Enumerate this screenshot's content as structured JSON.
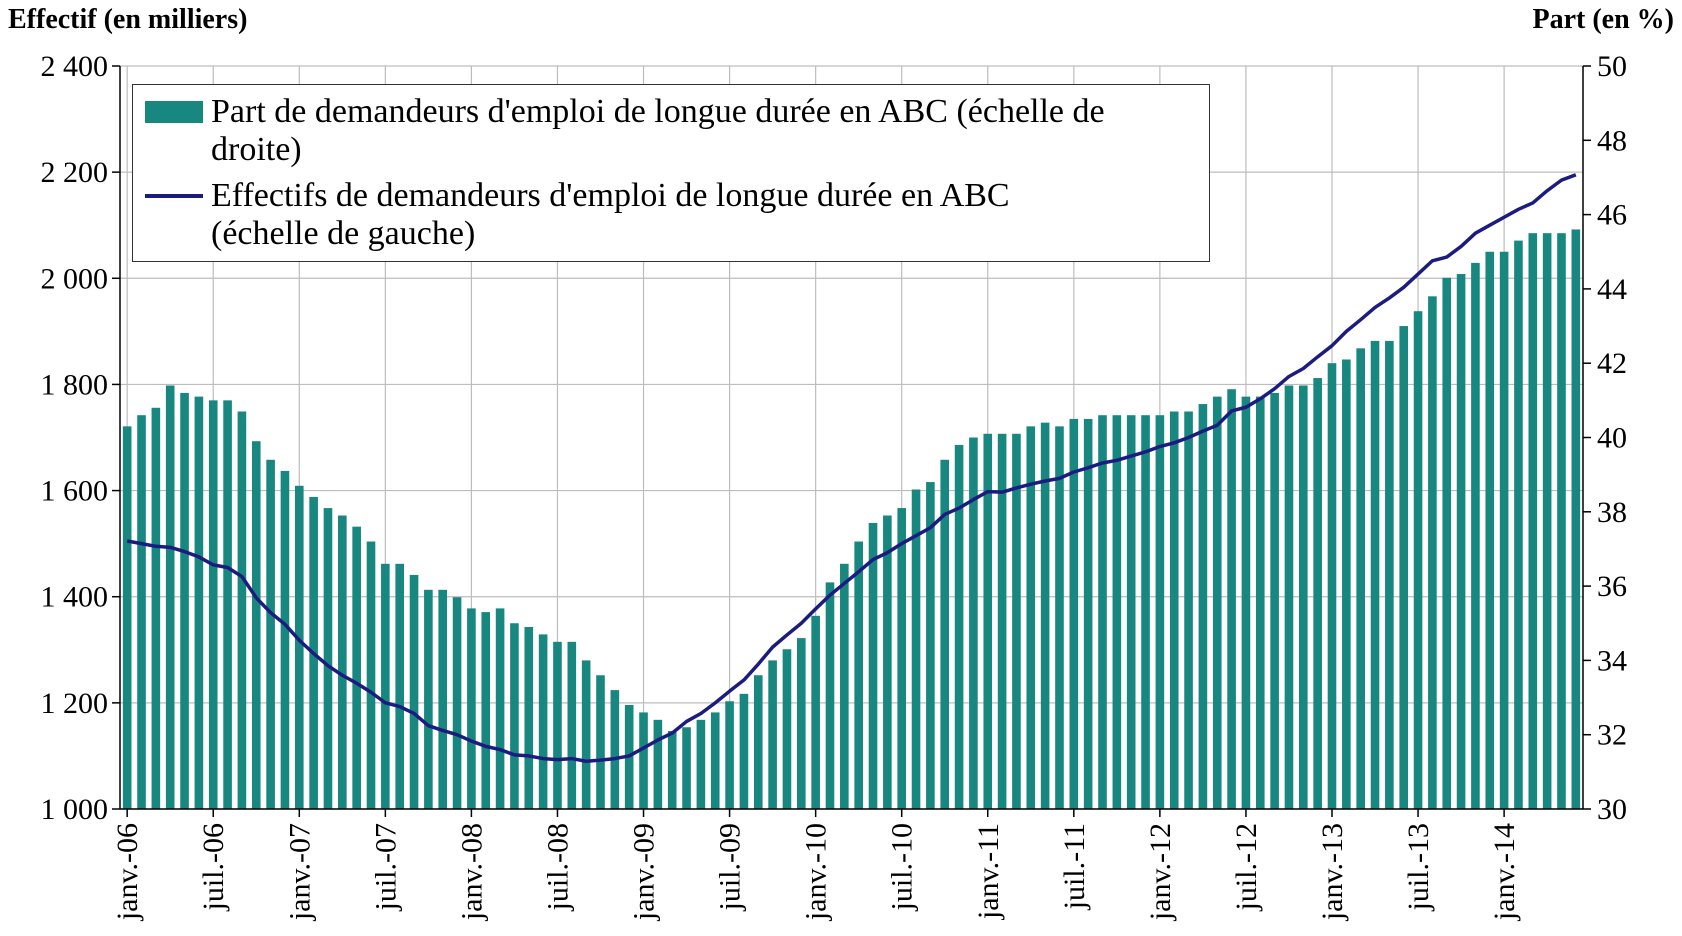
{
  "chart_data": {
    "type": "bar_line",
    "y_label": "Effectif (en milliers)",
    "y2_label": "Part (en %)",
    "categories": [
      "janv.-06",
      null,
      null,
      null,
      null,
      null,
      "juil.-06",
      null,
      null,
      null,
      null,
      null,
      "janv.-07",
      null,
      null,
      null,
      null,
      null,
      "juil.-07",
      null,
      null,
      null,
      null,
      null,
      "janv.-08",
      null,
      null,
      null,
      null,
      null,
      "juil.-08",
      null,
      null,
      null,
      null,
      null,
      "janv.-09",
      null,
      null,
      null,
      null,
      null,
      "juil.-09",
      null,
      null,
      null,
      null,
      null,
      "janv.-10",
      null,
      null,
      null,
      null,
      null,
      "juil.-10",
      null,
      null,
      null,
      null,
      null,
      "janv.-11",
      null,
      null,
      null,
      null,
      null,
      "juil.-11",
      null,
      null,
      null,
      null,
      null,
      "janv.-12",
      null,
      null,
      null,
      null,
      null,
      "juil.-12",
      null,
      null,
      null,
      null,
      null,
      "janv.-13",
      null,
      null,
      null,
      null,
      null,
      "juil.-13",
      null,
      null,
      null,
      null,
      null,
      "janv.-14",
      null,
      null,
      null,
      null,
      null
    ],
    "series": [
      {
        "name": "Part de demandeurs d'emploi de longue durée en ABC (échelle de droite)",
        "type": "bar",
        "axis": "y2",
        "color": "#17877f",
        "values": [
          40.3,
          40.6,
          40.8,
          41.4,
          41.2,
          41.1,
          41.0,
          41.0,
          40.7,
          39.9,
          39.4,
          39.1,
          38.7,
          38.4,
          38.1,
          37.9,
          37.6,
          37.2,
          36.6,
          36.6,
          36.3,
          35.9,
          35.9,
          35.7,
          35.4,
          35.3,
          35.4,
          35.0,
          34.9,
          34.7,
          34.5,
          34.5,
          34.0,
          33.6,
          33.2,
          32.8,
          32.6,
          32.4,
          32.1,
          32.2,
          32.4,
          32.6,
          32.9,
          33.1,
          33.6,
          34.0,
          34.3,
          34.6,
          35.2,
          36.1,
          36.6,
          37.2,
          37.7,
          37.9,
          38.1,
          38.6,
          38.8,
          39.4,
          39.8,
          40.0,
          40.1,
          40.1,
          40.1,
          40.3,
          40.4,
          40.3,
          40.5,
          40.5,
          40.6,
          40.6,
          40.6,
          40.6,
          40.6,
          40.7,
          40.7,
          40.9,
          41.1,
          41.3,
          41.1,
          41.1,
          41.2,
          41.4,
          41.4,
          41.6,
          42.0,
          42.1,
          42.4,
          42.6,
          42.6,
          43.0,
          43.4,
          43.8,
          44.3,
          44.4,
          44.7,
          45.0,
          45.0,
          45.3,
          45.5,
          45.5,
          45.5,
          45.6
        ]
      },
      {
        "name": "Effectifs de demandeurs d'emploi de longue durée en ABC (échelle de gauche)",
        "type": "line",
        "axis": "y",
        "color": "#1c1c80",
        "values": [
          1505,
          1500,
          1495,
          1493,
          1485,
          1475,
          1460,
          1455,
          1438,
          1398,
          1370,
          1348,
          1318,
          1293,
          1270,
          1252,
          1237,
          1220,
          1200,
          1193,
          1180,
          1157,
          1148,
          1140,
          1128,
          1118,
          1112,
          1102,
          1100,
          1095,
          1093,
          1095,
          1090,
          1092,
          1095,
          1100,
          1115,
          1130,
          1143,
          1165,
          1180,
          1200,
          1222,
          1243,
          1273,
          1305,
          1328,
          1350,
          1377,
          1403,
          1425,
          1447,
          1470,
          1483,
          1500,
          1515,
          1530,
          1555,
          1567,
          1583,
          1598,
          1597,
          1605,
          1612,
          1618,
          1623,
          1635,
          1643,
          1652,
          1657,
          1665,
          1673,
          1683,
          1690,
          1700,
          1712,
          1723,
          1750,
          1757,
          1773,
          1792,
          1815,
          1830,
          1852,
          1873,
          1900,
          1922,
          1945,
          1963,
          1983,
          2008,
          2033,
          2040,
          2060,
          2085,
          2100,
          2115,
          2130,
          2142,
          2165,
          2185,
          2195
        ]
      }
    ],
    "ylim": [
      1000,
      2400
    ],
    "yticks": [
      {
        "value": 1000,
        "label": "1 000"
      },
      {
        "value": 1200,
        "label": "1 200"
      },
      {
        "value": 1400,
        "label": "1 400"
      },
      {
        "value": 1600,
        "label": "1 600"
      },
      {
        "value": 1800,
        "label": "1 800"
      },
      {
        "value": 2000,
        "label": "2 000"
      },
      {
        "value": 2200,
        "label": "2 200"
      },
      {
        "value": 2400,
        "label": "2 400"
      }
    ],
    "y2lim": [
      30,
      50
    ],
    "y2ticks": [
      30,
      32,
      34,
      36,
      38,
      40,
      42,
      44,
      46,
      48,
      50
    ],
    "grid": true,
    "legend": "top-left"
  }
}
